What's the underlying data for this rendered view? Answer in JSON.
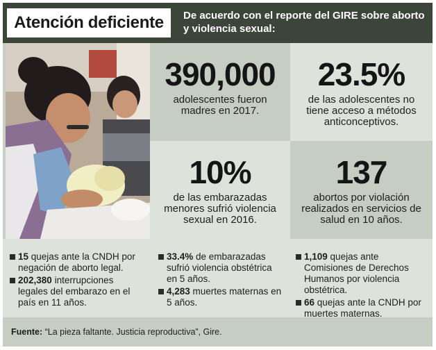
{
  "header": {
    "title": "Atención deficiente",
    "subtitle": "De acuerdo con el reporte del GIRE sobre aborto y violencia sexual:"
  },
  "stats": [
    {
      "value": "390,000",
      "description": "adolescentes fueron madres en 2017."
    },
    {
      "value": "23.5%",
      "description": "de las adolescentes no tiene acceso a métodos anticonceptivos."
    },
    {
      "value": "10%",
      "description": "de las embarazadas menores sufrió violencia sexual en 2016."
    },
    {
      "value": "137",
      "description": "abortos por violación realizados en servicios de salud en 10 años."
    }
  ],
  "facts": {
    "col1": [
      {
        "bold": "15",
        "text": " quejas ante la CNDH por negación de aborto legal."
      },
      {
        "bold": "202,380",
        "text": " interrupciones legales del embarazo en el país en 11 años."
      }
    ],
    "col2": [
      {
        "bold": "33.4%",
        "text": " de embarazadas sufrió violencia obstétrica en 5 años."
      },
      {
        "bold": "4,283",
        "text": " muertes maternas en 5 años."
      }
    ],
    "col3": [
      {
        "bold": "1,109",
        "text": " quejas ante Comisiones de Derechos Humanos por violencia obstétrica."
      },
      {
        "bold": "66",
        "text": " quejas ante la CNDH por muertes maternas."
      }
    ]
  },
  "footer": {
    "label": "Fuente:",
    "source": " “La pieza faltante. Justicia reproductiva”, Gire."
  }
}
